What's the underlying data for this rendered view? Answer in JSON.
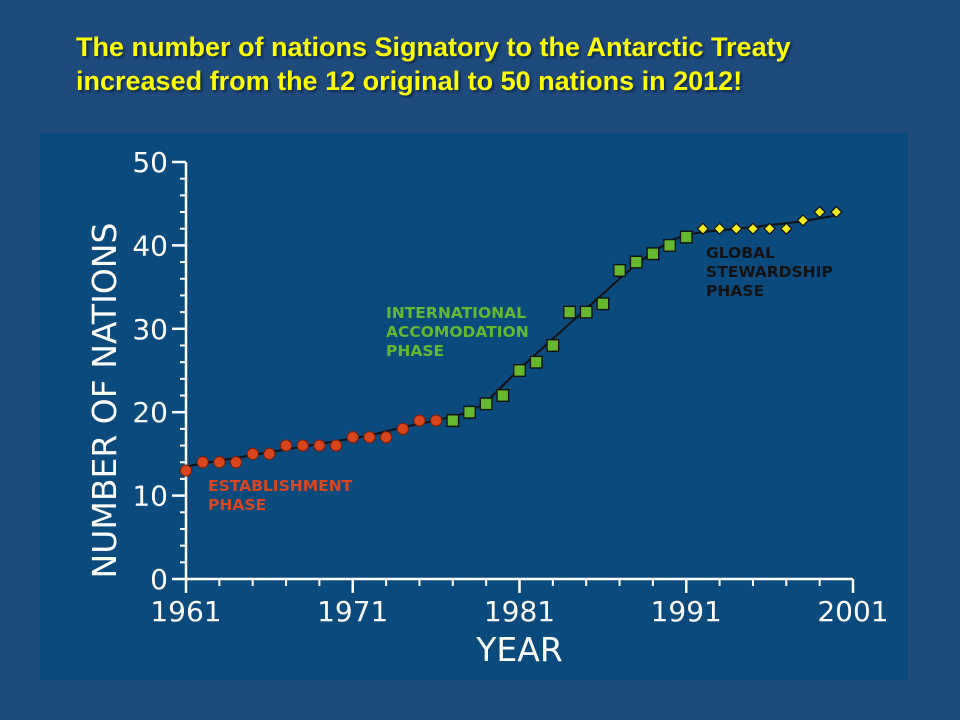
{
  "headline": {
    "line1": "The number of nations Signatory to the Antarctic Treaty",
    "line2": "increased from the 12 original to 50 nations in 2012!"
  },
  "colors": {
    "background": "#1f4a7c",
    "plot_panel": "#0a4a7d",
    "headline": "#ffff00",
    "establishment": "#d9451d",
    "accommodation": "#66b82e",
    "stewardship": "#f2ec1a"
  },
  "chart_data": {
    "type": "scatter",
    "xlabel": "YEAR",
    "ylabel": "NUMBER OF NATIONS",
    "xlim": [
      1961,
      2001
    ],
    "ylim": [
      0,
      50
    ],
    "x_ticks": [
      "1961",
      "1971",
      "1981",
      "1991",
      "2001"
    ],
    "y_ticks": [
      "0",
      "10",
      "20",
      "30",
      "40",
      "50"
    ],
    "grid": false,
    "series": [
      {
        "name": "ESTABLISHMENT PHASE",
        "marker": "circle",
        "x": [
          1961,
          1962,
          1963,
          1964,
          1965,
          1966,
          1967,
          1968,
          1969,
          1970,
          1971,
          1972,
          1973,
          1974,
          1975,
          1976
        ],
        "y": [
          13,
          14,
          14,
          14,
          15,
          15,
          16,
          16,
          16,
          16,
          17,
          17,
          17,
          18,
          19,
          19
        ]
      },
      {
        "name": "INTERNATIONAL ACCOMODATION PHASE",
        "marker": "square",
        "x": [
          1977,
          1978,
          1979,
          1980,
          1981,
          1982,
          1983,
          1984,
          1985,
          1986,
          1987,
          1988,
          1989,
          1990,
          1991
        ],
        "y": [
          19,
          20,
          21,
          22,
          25,
          26,
          28,
          32,
          32,
          33,
          37,
          38,
          39,
          40,
          41
        ]
      },
      {
        "name": "GLOBAL STEWARDSHIP PHASE",
        "marker": "diamond",
        "x": [
          1992,
          1993,
          1994,
          1995,
          1996,
          1997,
          1998,
          1999,
          2000
        ],
        "y": [
          42,
          42,
          42,
          42,
          42,
          42,
          43,
          44,
          44
        ]
      }
    ],
    "trend_line": {
      "x": [
        1961,
        1963,
        1966,
        1969,
        1972,
        1974,
        1976,
        1978,
        1979,
        1980,
        1981,
        1982,
        1983,
        1984,
        1985,
        1986,
        1987,
        1988,
        1989,
        1990,
        1991,
        1992,
        1995,
        1998,
        2000
      ],
      "y": [
        13.5,
        14.2,
        15.2,
        16.2,
        17.2,
        18.2,
        19.0,
        20.0,
        21.2,
        23.2,
        25.2,
        27.0,
        28.8,
        30.6,
        32.4,
        34.2,
        36.0,
        37.7,
        39.2,
        40.5,
        41.3,
        41.6,
        42.2,
        42.9,
        43.6
      ]
    },
    "annotations": {
      "establishment": [
        "ESTABLISHMENT",
        "PHASE"
      ],
      "accommodation": [
        "INTERNATIONAL",
        "ACCOMODATION",
        "PHASE"
      ],
      "stewardship": [
        "GLOBAL",
        "STEWARDSHIP",
        "PHASE"
      ]
    }
  }
}
